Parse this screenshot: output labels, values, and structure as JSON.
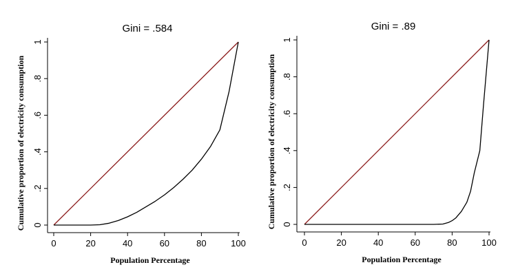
{
  "chart_data": [
    {
      "type": "line",
      "title": "Gini = .584",
      "xlabel": "Population Percentage",
      "ylabel": "Cumulative proportion of electricity consumption",
      "xlim": [
        0,
        100
      ],
      "ylim": [
        0,
        1
      ],
      "xticks": [
        0,
        20,
        40,
        60,
        80,
        100
      ],
      "yticks": [
        0,
        0.2,
        0.4,
        0.6,
        0.8,
        1
      ],
      "xtick_labels": [
        "0",
        "20",
        "40",
        "60",
        "80",
        "100"
      ],
      "ytick_labels": [
        "0",
        ".2",
        ".4",
        ".6",
        ".8",
        "1"
      ],
      "grid": false,
      "series": [
        {
          "color": "#8b1a1a",
          "x": [
            0,
            100
          ],
          "y": [
            0,
            1
          ]
        },
        {
          "color": "#000000",
          "x": [
            0,
            10,
            20,
            25,
            30,
            35,
            40,
            45,
            50,
            55,
            60,
            65,
            70,
            75,
            80,
            85,
            90,
            95,
            100
          ],
          "y": [
            0,
            0,
            0,
            0.002,
            0.01,
            0.025,
            0.045,
            0.07,
            0.1,
            0.13,
            0.165,
            0.205,
            0.25,
            0.3,
            0.36,
            0.43,
            0.52,
            0.73,
            1
          ]
        }
      ]
    },
    {
      "type": "line",
      "title": "Gini = .89",
      "xlabel": "Population Percentage",
      "ylabel": "Cumulative proportion of electricity consumption",
      "xlim": [
        0,
        100
      ],
      "ylim": [
        0,
        1
      ],
      "xticks": [
        0,
        20,
        40,
        60,
        80,
        100
      ],
      "yticks": [
        0,
        0.2,
        0.4,
        0.6,
        0.8,
        1
      ],
      "xtick_labels": [
        "0",
        "20",
        "40",
        "60",
        "80",
        "100"
      ],
      "ytick_labels": [
        "0",
        ".2",
        ".4",
        ".6",
        ".8",
        "1"
      ],
      "grid": false,
      "series": [
        {
          "color": "#8b1a1a",
          "x": [
            0,
            100
          ],
          "y": [
            0,
            1
          ]
        },
        {
          "color": "#000000",
          "x": [
            0,
            20,
            40,
            60,
            70,
            75,
            78,
            80,
            82,
            85,
            88,
            90,
            92,
            95,
            97,
            100
          ],
          "y": [
            0,
            0,
            0,
            0,
            0,
            0.002,
            0.01,
            0.02,
            0.035,
            0.07,
            0.12,
            0.18,
            0.28,
            0.4,
            0.65,
            1
          ]
        }
      ]
    }
  ]
}
